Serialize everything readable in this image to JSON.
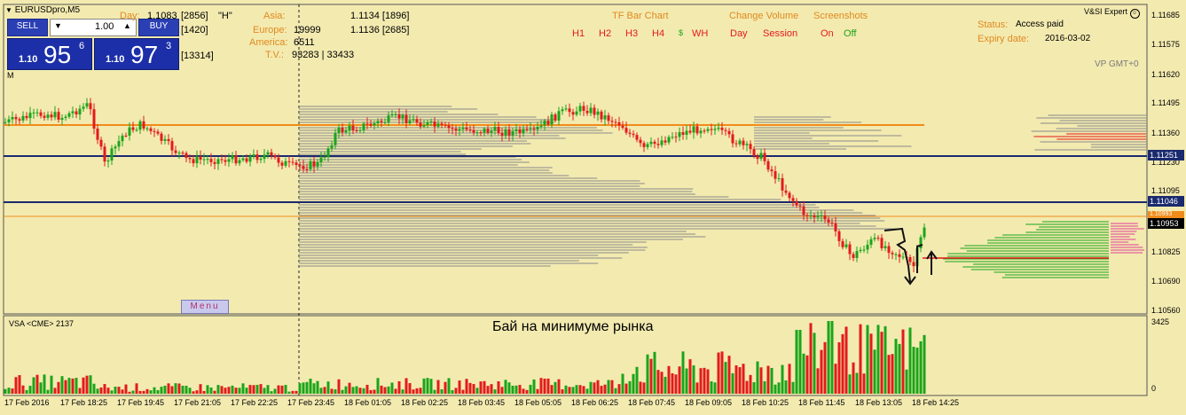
{
  "symbol_title": "EURUSDpro,M5",
  "indicator_mark": "M",
  "trade_panel": {
    "sell_label": "SELL",
    "buy_label": "BUY",
    "lot_value": "1.00",
    "sell_price_prefix": "1.10",
    "sell_price_big": "95",
    "sell_price_sup": "6",
    "buy_price_prefix": "1.10",
    "buy_price_big": "97",
    "buy_price_sup": "3"
  },
  "stats": {
    "day_label": "Day:",
    "day_value": "1.1083",
    "day_count": "[2856]",
    "day_flag": "\"H\"",
    "row2_count": "[1420]",
    "row3_count": "[13314]",
    "asia_label": "Asia:",
    "europe_label": "Europe:",
    "america_label": "America:",
    "tv_label": "T.V.:",
    "europe_value": "19999",
    "america_value": "6511",
    "tv_value": "93283 | 33433",
    "asia_price": "1.1134 [1896]",
    "europe_price": "1.1136 [2685]"
  },
  "tf_panel": {
    "title": "TF Bar Chart",
    "buttons": [
      "H1",
      "H2",
      "H3",
      "H4",
      "$",
      "WH"
    ]
  },
  "volume_panel": {
    "title": "Change Volume",
    "day_label": "Day",
    "session_label": "Session"
  },
  "screenshots_panel": {
    "title": "Screenshots",
    "on_label": "On",
    "off_label": "Off"
  },
  "expert": {
    "name": "V&SI Expert",
    "status_label": "Status:",
    "status_value": "Access paid",
    "expiry_label": "Expiry date:",
    "expiry_value": "2016-03-02",
    "vp_label": "VP GMT+0"
  },
  "menu_label": "Menu",
  "annotation": "Бай на минимуме рынка",
  "vsa_label": "VSA <CME> 2137",
  "vsa_axis": [
    "3425",
    "0"
  ],
  "price_axis": [
    "1.11685",
    "1.11575",
    "1.11620",
    "1.11495",
    "1.11360",
    "1.11230",
    "1.11095",
    "1.10825",
    "1.10690",
    "1.10560"
  ],
  "price_tags": {
    "blue_upper": "1.11251",
    "blue_lower": "1.11046",
    "orange_line": "1.10993",
    "current": "1.10953"
  },
  "time_axis": [
    "17 Feb 2016",
    "17 Feb 18:25",
    "17 Feb 19:45",
    "17 Feb 21:05",
    "17 Feb 22:25",
    "17 Feb 23:45",
    "18 Feb 01:05",
    "18 Feb 02:25",
    "18 Feb 03:45",
    "18 Feb 05:05",
    "18 Feb 06:25",
    "18 Feb 07:45",
    "18 Feb 09:05",
    "18 Feb 10:25",
    "18 Feb 11:45",
    "18 Feb 13:05",
    "18 Feb 14:25"
  ],
  "colors": {
    "background": "#f3eab0",
    "bull_candle": "#1aa51a",
    "bear_candle": "#e31b1b",
    "level_line": "#1a2a6e",
    "orange_line": "#f08c1a",
    "accent_blue": "#2b3fb5"
  }
}
